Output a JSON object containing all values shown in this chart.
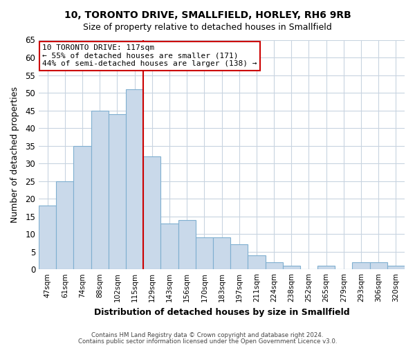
{
  "title": "10, TORONTO DRIVE, SMALLFIELD, HORLEY, RH6 9RB",
  "subtitle": "Size of property relative to detached houses in Smallfield",
  "xlabel": "Distribution of detached houses by size in Smallfield",
  "ylabel": "Number of detached properties",
  "bar_labels": [
    "47sqm",
    "61sqm",
    "74sqm",
    "88sqm",
    "102sqm",
    "115sqm",
    "129sqm",
    "143sqm",
    "156sqm",
    "170sqm",
    "183sqm",
    "197sqm",
    "211sqm",
    "224sqm",
    "238sqm",
    "252sqm",
    "265sqm",
    "279sqm",
    "293sqm",
    "306sqm",
    "320sqm"
  ],
  "bar_values": [
    18,
    25,
    35,
    45,
    44,
    51,
    32,
    13,
    14,
    9,
    9,
    7,
    4,
    2,
    1,
    0,
    1,
    0,
    2,
    2,
    1
  ],
  "bar_color": "#c9d9ea",
  "bar_edge_color": "#7fafd0",
  "grid_color": "#c8d4e0",
  "ylim": [
    0,
    65
  ],
  "yticks": [
    0,
    5,
    10,
    15,
    20,
    25,
    30,
    35,
    40,
    45,
    50,
    55,
    60,
    65
  ],
  "property_line_x": 5.5,
  "property_line_color": "#cc0000",
  "annotation_title": "10 TORONTO DRIVE: 117sqm",
  "annotation_line1": "← 55% of detached houses are smaller (171)",
  "annotation_line2": "44% of semi-detached houses are larger (138) →",
  "footer_line1": "Contains HM Land Registry data © Crown copyright and database right 2024.",
  "footer_line2": "Contains public sector information licensed under the Open Government Licence v3.0.",
  "bg_color": "#ffffff",
  "plot_bg_color": "#ffffff"
}
